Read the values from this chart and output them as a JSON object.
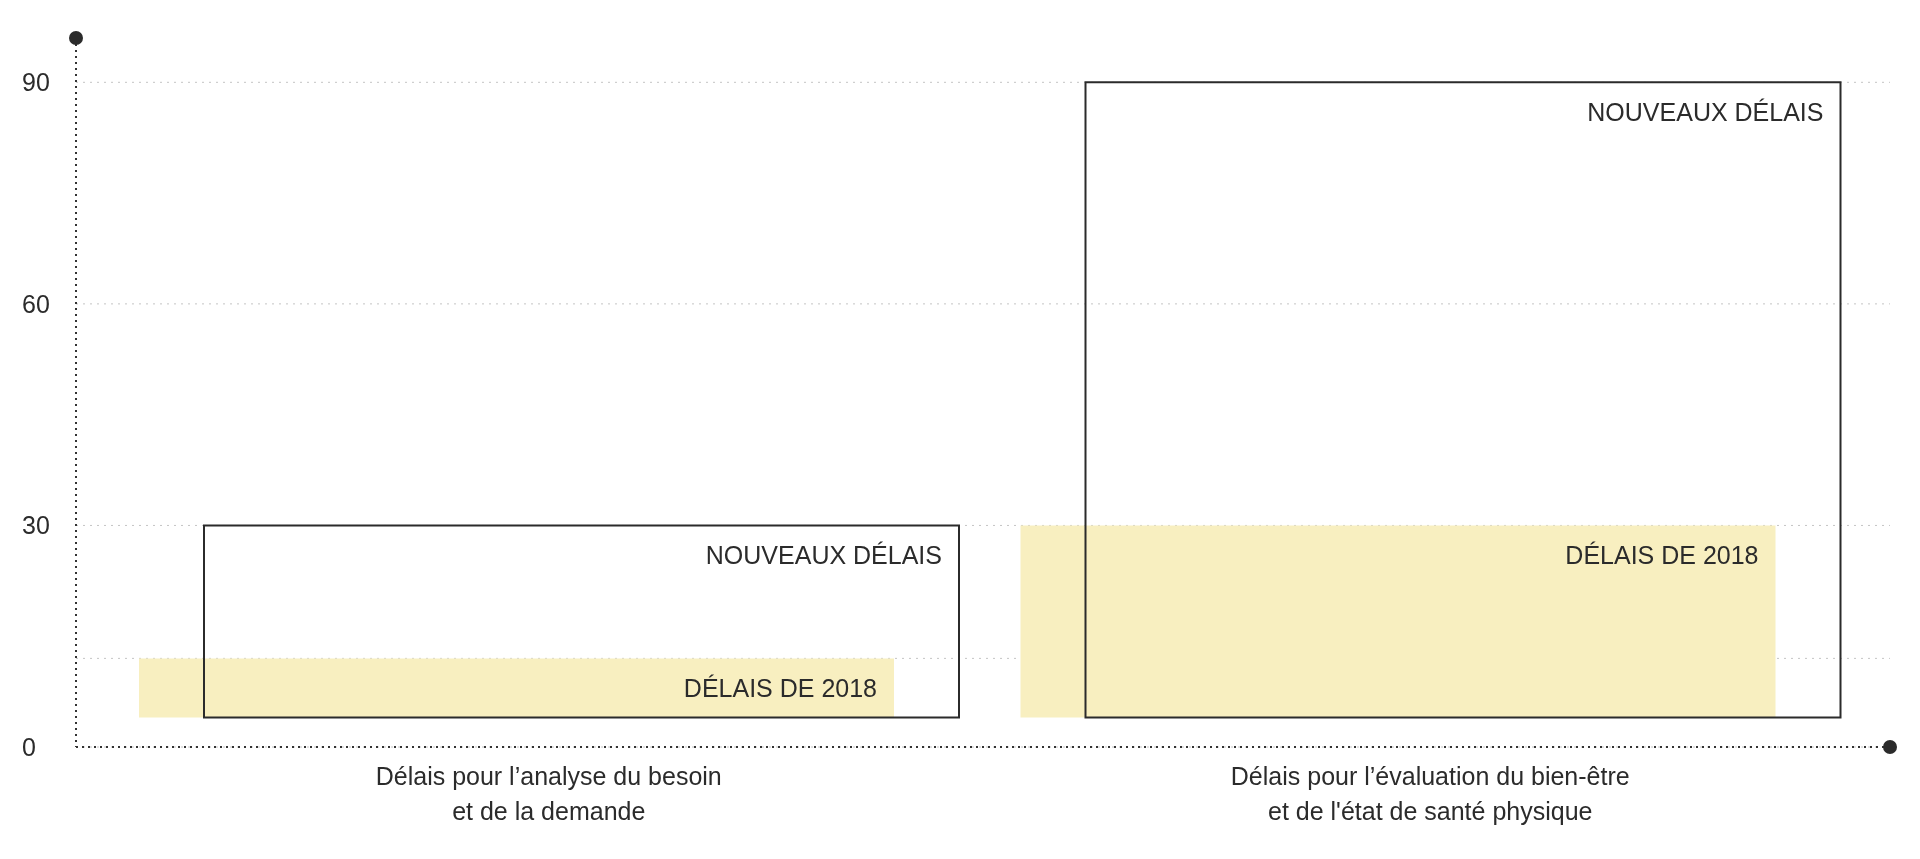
{
  "chart_data": {
    "type": "bar",
    "categories": [
      "Délais pour l’analyse du besoin\net de la demande",
      "Délais pour l’évaluation du bien-être\net de l'état de santé physique"
    ],
    "series": [
      {
        "name": "DÉLAIS DE 2018",
        "color": "#f8efc0",
        "values": [
          8,
          26
        ],
        "base": [
          4,
          4
        ]
      },
      {
        "name": "NOUVEAUX DÉLAIS",
        "color": "#2b2b2b",
        "values": [
          26,
          86
        ],
        "base": [
          4,
          4
        ]
      }
    ],
    "ylim": [
      0,
      96
    ],
    "yticks": [
      0,
      {
        "value": 12,
        "label": null
      },
      30,
      60,
      90
    ],
    "grid": "y",
    "legend": false
  }
}
